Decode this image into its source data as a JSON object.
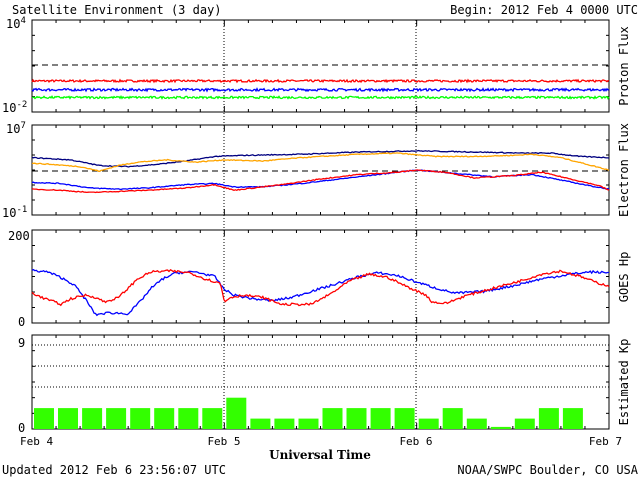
{
  "header": {
    "title": "Satellite Environment (3 day)",
    "begin": "Begin:  2012 Feb 4 0000 UTC"
  },
  "footer": {
    "updated": "Updated 2012 Feb  6 23:56:07 UTC",
    "credit": "NOAA/SWPC Boulder, CO USA"
  },
  "colors": {
    "red": "#ff0000",
    "blue": "#0000ff",
    "green": "#00ff00",
    "navy": "#000080",
    "orange": "#ffa500",
    "kp_bar": "#33ff00"
  },
  "chart_data": [
    {
      "type": "line",
      "ylabel": "Proton Flux",
      "ytick_base": "10",
      "yticks": [
        {
          "exp": "4"
        },
        {
          "exp": "-2"
        }
      ],
      "yscale": "log",
      "ylim_exp": [
        -2,
        4
      ],
      "x_unit": "days since 2012 Feb 4 0000 UTC",
      "threshold_exp": 1,
      "series": [
        {
          "name": "proton_red",
          "color": "#ff0000",
          "base": 0.025,
          "noise": 0.07
        },
        {
          "name": "proton_blue",
          "color": "#0000ff",
          "base": -0.55,
          "noise": 0.08
        },
        {
          "name": "proton_green",
          "color": "#00ff00",
          "base": -1.05,
          "noise": 0.07
        }
      ]
    },
    {
      "type": "line",
      "ylabel": "Electron Flux",
      "ytick_base": "10",
      "yticks": [
        {
          "exp": "7"
        },
        {
          "exp": "-1"
        }
      ],
      "yscale": "log",
      "ylim_exp": [
        -1,
        7
      ],
      "threshold_exp": 3,
      "series": [
        {
          "name": "electron_navy",
          "color": "#000080",
          "points": [
            [
              0,
              4.1
            ],
            [
              0.2,
              3.9
            ],
            [
              0.35,
              3.4
            ],
            [
              0.5,
              3.3
            ],
            [
              0.65,
              3.5
            ],
            [
              0.8,
              3.8
            ],
            [
              0.95,
              4.2
            ],
            [
              1.1,
              4.3
            ],
            [
              1.4,
              4.4
            ],
            [
              1.7,
              4.6
            ],
            [
              2.0,
              4.7
            ],
            [
              2.3,
              4.6
            ],
            [
              2.55,
              4.5
            ],
            [
              2.7,
              4.5
            ],
            [
              2.85,
              4.2
            ],
            [
              3.0,
              4.1
            ]
          ]
        },
        {
          "name": "electron_orange",
          "color": "#ffa500",
          "points": [
            [
              0,
              3.6
            ],
            [
              0.1,
              3.5
            ],
            [
              0.25,
              3.3
            ],
            [
              0.35,
              2.9
            ],
            [
              0.45,
              3.4
            ],
            [
              0.55,
              3.7
            ],
            [
              0.7,
              3.9
            ],
            [
              0.85,
              3.7
            ],
            [
              1.0,
              3.9
            ],
            [
              1.2,
              3.8
            ],
            [
              1.4,
              4.1
            ],
            [
              1.7,
              4.4
            ],
            [
              1.9,
              4.5
            ],
            [
              2.1,
              4.2
            ],
            [
              2.3,
              4.2
            ],
            [
              2.5,
              4.3
            ],
            [
              2.6,
              4.4
            ],
            [
              2.75,
              4.1
            ],
            [
              3.0,
              3.0
            ]
          ]
        },
        {
          "name": "electron_blue",
          "color": "#0000ff",
          "points": [
            [
              0,
              1.9
            ],
            [
              0.15,
              1.8
            ],
            [
              0.3,
              1.4
            ],
            [
              0.45,
              1.3
            ],
            [
              0.6,
              1.4
            ],
            [
              0.8,
              1.7
            ],
            [
              0.95,
              1.8
            ],
            [
              1.05,
              1.5
            ],
            [
              1.2,
              1.5
            ],
            [
              1.4,
              1.8
            ],
            [
              1.6,
              2.2
            ],
            [
              1.8,
              2.6
            ],
            [
              2.0,
              3.0
            ],
            [
              2.2,
              2.7
            ],
            [
              2.4,
              2.4
            ],
            [
              2.6,
              2.6
            ],
            [
              2.75,
              2.1
            ],
            [
              2.9,
              1.6
            ],
            [
              3.0,
              1.3
            ]
          ]
        },
        {
          "name": "electron_red",
          "color": "#ff0000",
          "points": [
            [
              0,
              1.3
            ],
            [
              0.15,
              1.2
            ],
            [
              0.3,
              1.0
            ],
            [
              0.45,
              1.1
            ],
            [
              0.6,
              1.2
            ],
            [
              0.8,
              1.4
            ],
            [
              0.95,
              1.7
            ],
            [
              1.05,
              1.2
            ],
            [
              1.15,
              1.4
            ],
            [
              1.3,
              1.7
            ],
            [
              1.5,
              2.2
            ],
            [
              1.7,
              2.6
            ],
            [
              1.9,
              2.8
            ],
            [
              2.0,
              3.0
            ],
            [
              2.15,
              2.8
            ],
            [
              2.3,
              2.3
            ],
            [
              2.5,
              2.5
            ],
            [
              2.65,
              2.8
            ],
            [
              2.8,
              2.2
            ],
            [
              2.95,
              1.6
            ],
            [
              3.0,
              1.2
            ]
          ]
        }
      ]
    },
    {
      "type": "line",
      "ylabel": "GOES Hp",
      "yticks": [
        {
          "label": "200",
          "value": 200
        },
        {
          "label": "0",
          "value": 0
        }
      ],
      "ylim": [
        0,
        200
      ],
      "series": [
        {
          "name": "hp_blue",
          "color": "#0000ff",
          "points": [
            [
              0,
              113
            ],
            [
              0.08,
              110
            ],
            [
              0.15,
              98
            ],
            [
              0.22,
              82
            ],
            [
              0.28,
              50
            ],
            [
              0.33,
              18
            ],
            [
              0.4,
              22
            ],
            [
              0.5,
              20
            ],
            [
              0.56,
              45
            ],
            [
              0.62,
              75
            ],
            [
              0.68,
              95
            ],
            [
              0.75,
              108
            ],
            [
              0.85,
              110
            ],
            [
              0.95,
              100
            ],
            [
              1.0,
              72
            ],
            [
              1.05,
              60
            ],
            [
              1.15,
              52
            ],
            [
              1.25,
              48
            ],
            [
              1.35,
              55
            ],
            [
              1.45,
              68
            ],
            [
              1.55,
              80
            ],
            [
              1.7,
              100
            ],
            [
              1.8,
              108
            ],
            [
              1.9,
              102
            ],
            [
              2.0,
              88
            ],
            [
              2.1,
              75
            ],
            [
              2.2,
              64
            ],
            [
              2.35,
              68
            ],
            [
              2.5,
              80
            ],
            [
              2.65,
              95
            ],
            [
              2.8,
              105
            ],
            [
              2.9,
              110
            ],
            [
              3.0,
              108
            ]
          ]
        },
        {
          "name": "hp_red",
          "color": "#ff0000",
          "points": [
            [
              0,
              65
            ],
            [
              0.05,
              55
            ],
            [
              0.1,
              48
            ],
            [
              0.15,
              40
            ],
            [
              0.2,
              52
            ],
            [
              0.28,
              60
            ],
            [
              0.33,
              55
            ],
            [
              0.38,
              45
            ],
            [
              0.45,
              55
            ],
            [
              0.5,
              75
            ],
            [
              0.55,
              95
            ],
            [
              0.62,
              110
            ],
            [
              0.72,
              112
            ],
            [
              0.82,
              108
            ],
            [
              0.9,
              95
            ],
            [
              0.98,
              85
            ],
            [
              1.0,
              45
            ],
            [
              1.03,
              55
            ],
            [
              1.1,
              60
            ],
            [
              1.2,
              55
            ],
            [
              1.3,
              40
            ],
            [
              1.45,
              40
            ],
            [
              1.55,
              62
            ],
            [
              1.65,
              90
            ],
            [
              1.75,
              105
            ],
            [
              1.85,
              98
            ],
            [
              1.95,
              78
            ],
            [
              2.05,
              60
            ],
            [
              2.08,
              45
            ],
            [
              2.15,
              42
            ],
            [
              2.25,
              58
            ],
            [
              2.4,
              75
            ],
            [
              2.55,
              92
            ],
            [
              2.65,
              105
            ],
            [
              2.75,
              112
            ],
            [
              2.85,
              100
            ],
            [
              2.95,
              85
            ],
            [
              3.0,
              80
            ]
          ]
        }
      ]
    },
    {
      "type": "bar",
      "ylabel": "Estimated Kp",
      "yticks": [
        {
          "label": "9",
          "value": 9
        },
        {
          "label": "0",
          "value": 0
        }
      ],
      "ylim": [
        0,
        9
      ],
      "bar_color": "#33ff00",
      "values": [
        2,
        2,
        2,
        2,
        2,
        2,
        2,
        2,
        3,
        1,
        1,
        1,
        2,
        2,
        2,
        2,
        1,
        2,
        1,
        0.2,
        1,
        2,
        2,
        0
      ]
    }
  ],
  "xaxis": {
    "label": "Universal Time",
    "ticks": [
      "Feb 4",
      "Feb 5",
      "Feb 6",
      "Feb 7"
    ]
  }
}
